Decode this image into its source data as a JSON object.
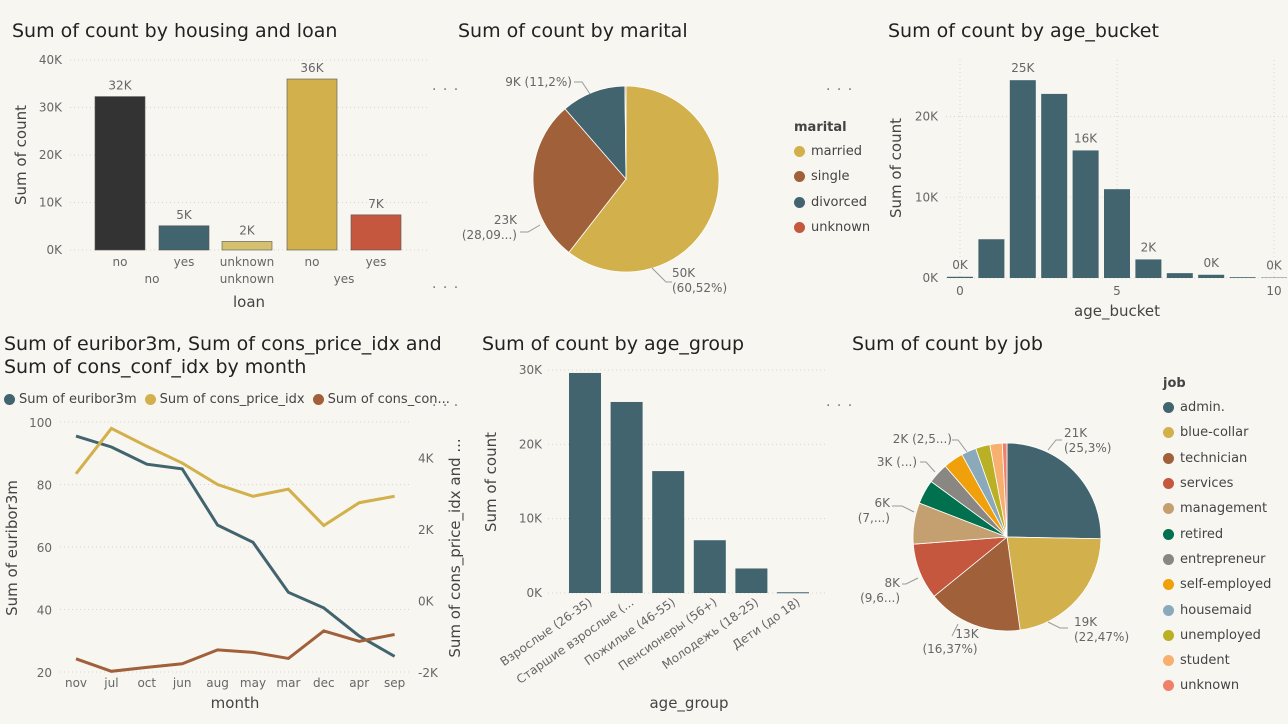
{
  "panels": {
    "housing_loan": {
      "title": "Sum of count by housing and loan"
    },
    "marital": {
      "title": "Sum of count by marital"
    },
    "age_bucket": {
      "title": "Sum of count by age_bucket"
    },
    "month": {
      "title": "Sum of euribor3m, Sum of cons_price_idx and Sum of cons_conf_idx by month"
    },
    "age_group": {
      "title": "Sum of count by age_group"
    },
    "job": {
      "title": "Sum of count by job"
    }
  },
  "chart_data": [
    {
      "id": "housing_loan",
      "type": "bar",
      "title": "Sum of count by housing and loan",
      "xlabel": "loan",
      "ylabel": "Sum of count",
      "ylim": [
        0,
        40000
      ],
      "yticks": [
        "0K",
        "10K",
        "20K",
        "30K",
        "40K"
      ],
      "categories": [
        {
          "housing": "no",
          "loan": "no",
          "value": 32300,
          "label": "32K",
          "color": "#333333"
        },
        {
          "housing": "no",
          "loan": "yes",
          "value": 5100,
          "label": "5K",
          "color": "#41646e"
        },
        {
          "housing": "unknown",
          "loan": "unknown",
          "value": 1800,
          "label": "2K",
          "color": "#d4c06e"
        },
        {
          "housing": "yes",
          "loan": "no",
          "value": 36000,
          "label": "36K",
          "color": "#d2b04b"
        },
        {
          "housing": "yes",
          "loan": "yes",
          "value": 7400,
          "label": "7K",
          "color": "#c4573e"
        }
      ],
      "housing_groups": [
        "no",
        "unknown",
        "yes"
      ],
      "grid": true
    },
    {
      "id": "marital",
      "type": "pie",
      "title": "Sum of count by marital",
      "legend_title": "marital",
      "slices": [
        {
          "name": "married",
          "value": 60.52,
          "label": "50K",
          "pct": "(60,52%)",
          "color": "#d2b04b"
        },
        {
          "name": "single",
          "value": 28.09,
          "label": "23K",
          "pct": "(28,09...)",
          "color": "#a0603a"
        },
        {
          "name": "divorced",
          "value": 11.2,
          "label": "9K (11,2%)",
          "pct": "",
          "color": "#41646e"
        },
        {
          "name": "unknown",
          "value": 0.19,
          "label": "",
          "pct": "",
          "color": "#c4573e"
        }
      ]
    },
    {
      "id": "age_bucket",
      "type": "bar",
      "title": "Sum of count by age_bucket",
      "xlabel": "age_bucket",
      "ylabel": "Sum of count",
      "ylim": [
        0,
        27000
      ],
      "xlim": [
        0,
        10
      ],
      "yticks": [
        "0K",
        "10K",
        "20K"
      ],
      "xticks": [
        "0",
        "5",
        "10"
      ],
      "x": [
        0,
        1,
        2,
        3,
        4,
        5,
        6,
        7,
        8,
        9,
        10
      ],
      "values": [
        150,
        4800,
        24500,
        22800,
        15800,
        11000,
        2300,
        600,
        400,
        100,
        50
      ],
      "labels": [
        "0K",
        "",
        "25K",
        "",
        "16K",
        "",
        "2K",
        "",
        "0K",
        "",
        "0K"
      ],
      "color": "#41646e"
    },
    {
      "id": "month",
      "type": "line",
      "title": "Sum of euribor3m, Sum of cons_price_idx and Sum of cons_conf_idx by month",
      "xlabel": "month",
      "ylabel": "Sum of euribor3m",
      "ylabel2": "Sum of cons_price_idx and ...",
      "categories": [
        "nov",
        "jul",
        "oct",
        "jun",
        "aug",
        "may",
        "mar",
        "dec",
        "apr",
        "sep"
      ],
      "ylim": [
        20,
        100
      ],
      "yticks": [
        "20",
        "40",
        "60",
        "80",
        "100"
      ],
      "ylim2": [
        -2000,
        5000
      ],
      "yticks2": [
        "-2K",
        "0K",
        "2K",
        "4K"
      ],
      "series": [
        {
          "name": "Sum of euribor3m",
          "axis": "left",
          "color": "#41646e",
          "values": [
            95.5,
            92,
            86.5,
            85,
            67,
            61.5,
            45.5,
            40.5,
            31.5,
            25
          ]
        },
        {
          "name": "Sum of cons_price_idx",
          "axis": "right",
          "color": "#d2b04b",
          "values": [
            3550,
            4820,
            4320,
            3850,
            3250,
            2920,
            3120,
            2100,
            2740,
            2920
          ]
        },
        {
          "name": "Sum of cons_con...",
          "axis": "right",
          "color": "#a0603a",
          "values": [
            -1630,
            -1980,
            -1870,
            -1770,
            -1380,
            -1450,
            -1620,
            -850,
            -1140,
            -950
          ]
        }
      ]
    },
    {
      "id": "age_group",
      "type": "bar",
      "title": "Sum of count by age_group",
      "xlabel": "age_group",
      "ylabel": "Sum of count",
      "ylim": [
        0,
        30000
      ],
      "yticks": [
        "0K",
        "10K",
        "20K",
        "30K"
      ],
      "categories": [
        "Взрослые (26-35)",
        "Старшие взрослые (...",
        "Пожилые (46-55)",
        "Пенсионеры (56+)",
        "Молодежь (18-25)",
        "Дети (до 18)"
      ],
      "values": [
        29600,
        25700,
        16400,
        7100,
        3300,
        100
      ],
      "color": "#41646e"
    },
    {
      "id": "job",
      "type": "pie",
      "title": "Sum of count by job",
      "legend_title": "job",
      "slices": [
        {
          "name": "admin.",
          "value": 25.3,
          "color": "#41646e"
        },
        {
          "name": "blue-collar",
          "value": 22.47,
          "color": "#d2b04b"
        },
        {
          "name": "technician",
          "value": 16.37,
          "color": "#a0603a"
        },
        {
          "name": "services",
          "value": 9.64,
          "color": "#c4573e"
        },
        {
          "name": "management",
          "value": 7.1,
          "color": "#c4a070"
        },
        {
          "name": "retired",
          "value": 4.17,
          "color": "#00704f"
        },
        {
          "name": "entrepreneur",
          "value": 3.54,
          "color": "#8a8682"
        },
        {
          "name": "self-employed",
          "value": 3.45,
          "color": "#f0a00a"
        },
        {
          "name": "housemaid",
          "value": 2.57,
          "color": "#8aaabb"
        },
        {
          "name": "unemployed",
          "value": 2.46,
          "color": "#b9b026"
        },
        {
          "name": "student",
          "value": 2.12,
          "color": "#f8b070"
        },
        {
          "name": "unknown",
          "value": 0.81,
          "color": "#f0806a"
        }
      ],
      "data_labels": [
        "21K",
        "(25,3%)",
        "19K",
        "(22,47%)",
        "13K",
        "(16,37%)",
        "8K",
        "(9,6...)",
        "6K",
        "(7,...)",
        "3K (...)",
        "2K (2,5...)"
      ]
    }
  ]
}
